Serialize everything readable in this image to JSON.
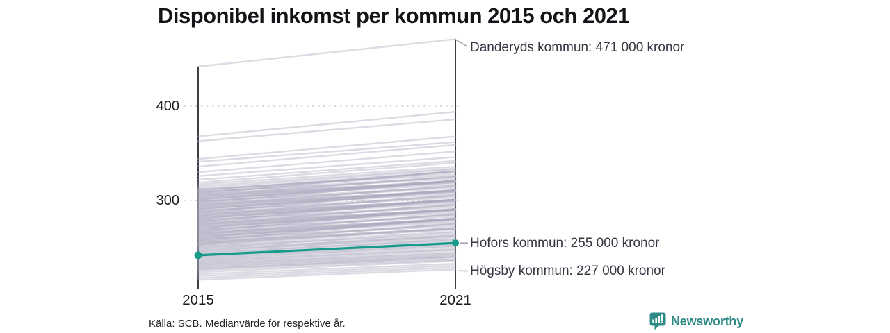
{
  "title": "Disponibel inkomst per kommun 2015 och 2021",
  "source_note": "Källa: SCB. Medianvärde för respektive år.",
  "branding": {
    "name": "Newsworthy",
    "icon": "newsworthy-speech-bubble-bar-chart",
    "color": "#2f8b87"
  },
  "chart_data": {
    "type": "line",
    "subtype": "slope-chart",
    "x_categories": [
      "2015",
      "2021"
    ],
    "y_axis": {
      "ticks": [
        400,
        300
      ],
      "tick_labels": [
        "400",
        "300"
      ],
      "ylim": [
        211,
        475
      ],
      "grid": "dotted"
    },
    "unit": "kronor (värden i tusental)",
    "annotations": [
      {
        "municipality": "Danderyds kommun",
        "text": "Danderyds kommun: 471 000 kronor",
        "value_2021": 471
      },
      {
        "municipality": "Hofors kommun",
        "text": "Hofors kommun: 255 000 kronor",
        "value_2021": 255,
        "highlighted": true
      },
      {
        "municipality": "Högsby kommun",
        "text": "Högsby kommun: 227 000 kronor",
        "value_2021": 227
      }
    ],
    "highlight_series": {
      "name": "Hofors kommun",
      "values": [
        242,
        255
      ],
      "color": "#169b8a"
    },
    "line_color": "#aba9bf",
    "axis_color": "#1b1b22",
    "grid_color": "#d4d4d4",
    "connector_color": "#9c9aa9",
    "background_lines": [
      [
        442,
        471
      ],
      [
        368,
        394
      ],
      [
        363,
        386
      ],
      [
        344,
        368
      ],
      [
        341,
        362
      ],
      [
        336,
        359
      ],
      [
        330,
        352
      ],
      [
        326,
        346
      ],
      [
        322,
        342
      ],
      [
        319,
        340
      ],
      [
        317,
        336
      ],
      [
        315,
        334
      ],
      [
        313,
        333
      ],
      [
        312,
        327
      ],
      [
        311,
        329
      ],
      [
        310,
        331
      ],
      [
        309,
        323
      ],
      [
        308,
        331
      ],
      [
        307,
        320
      ],
      [
        306,
        325
      ],
      [
        305,
        321
      ],
      [
        304,
        326
      ],
      [
        303,
        320
      ],
      [
        302,
        317
      ],
      [
        301,
        319
      ],
      [
        300,
        321
      ],
      [
        299,
        313
      ],
      [
        298,
        321
      ],
      [
        297,
        310
      ],
      [
        296,
        315
      ],
      [
        295,
        311
      ],
      [
        294,
        316
      ],
      [
        293,
        310
      ],
      [
        292,
        307
      ],
      [
        291,
        309
      ],
      [
        290,
        311
      ],
      [
        289,
        303
      ],
      [
        288,
        311
      ],
      [
        287,
        300
      ],
      [
        286,
        305
      ],
      [
        285,
        301
      ],
      [
        284,
        306
      ],
      [
        283,
        300
      ],
      [
        282,
        297
      ],
      [
        281,
        299
      ],
      [
        280,
        301
      ],
      [
        279,
        293
      ],
      [
        278,
        301
      ],
      [
        277,
        290
      ],
      [
        276,
        295
      ],
      [
        275,
        291
      ],
      [
        274,
        296
      ],
      [
        273,
        290
      ],
      [
        272,
        287
      ],
      [
        271,
        289
      ],
      [
        270,
        291
      ],
      [
        269,
        283
      ],
      [
        268,
        291
      ],
      [
        267,
        280
      ],
      [
        266,
        285
      ],
      [
        265,
        281
      ],
      [
        264,
        286
      ],
      [
        263,
        280
      ],
      [
        262,
        277
      ],
      [
        261,
        279
      ],
      [
        260,
        281
      ],
      [
        259,
        273
      ],
      [
        258,
        281
      ],
      [
        257,
        270
      ],
      [
        256,
        275
      ],
      [
        255,
        271
      ],
      [
        254,
        276
      ],
      [
        253,
        270
      ],
      [
        311,
        331
      ],
      [
        309,
        325
      ],
      [
        307,
        331
      ],
      [
        305,
        319
      ],
      [
        303,
        321
      ],
      [
        301,
        321
      ],
      [
        299,
        315
      ],
      [
        297,
        321
      ],
      [
        295,
        309
      ],
      [
        293,
        311
      ],
      [
        291,
        311
      ],
      [
        289,
        305
      ],
      [
        287,
        311
      ],
      [
        285,
        299
      ],
      [
        283,
        301
      ],
      [
        281,
        301
      ],
      [
        279,
        295
      ],
      [
        277,
        301
      ],
      [
        275,
        289
      ],
      [
        273,
        291
      ],
      [
        271,
        291
      ],
      [
        269,
        285
      ],
      [
        267,
        291
      ],
      [
        265,
        279
      ],
      [
        263,
        281
      ],
      [
        261,
        281
      ],
      [
        259,
        275
      ],
      [
        257,
        281
      ],
      [
        255,
        269
      ],
      [
        253,
        271
      ],
      [
        252,
        267
      ],
      [
        251,
        264
      ],
      [
        250,
        266
      ],
      [
        249,
        262
      ],
      [
        248,
        263
      ],
      [
        247,
        260
      ],
      [
        246,
        262
      ],
      [
        245,
        258
      ],
      [
        244,
        259
      ],
      [
        243,
        257
      ],
      [
        241,
        254
      ],
      [
        240,
        253
      ],
      [
        239,
        252
      ],
      [
        238,
        251
      ],
      [
        237,
        249
      ],
      [
        236,
        248
      ],
      [
        235,
        247
      ],
      [
        234,
        245
      ],
      [
        233,
        244
      ],
      [
        232,
        243
      ],
      [
        231,
        242
      ],
      [
        230,
        241
      ],
      [
        229,
        240
      ],
      [
        228,
        238
      ],
      [
        227,
        240
      ],
      [
        226,
        237
      ],
      [
        224,
        236
      ],
      [
        222,
        233
      ],
      [
        220,
        231
      ],
      [
        218,
        229
      ],
      [
        216,
        227
      ]
    ]
  }
}
